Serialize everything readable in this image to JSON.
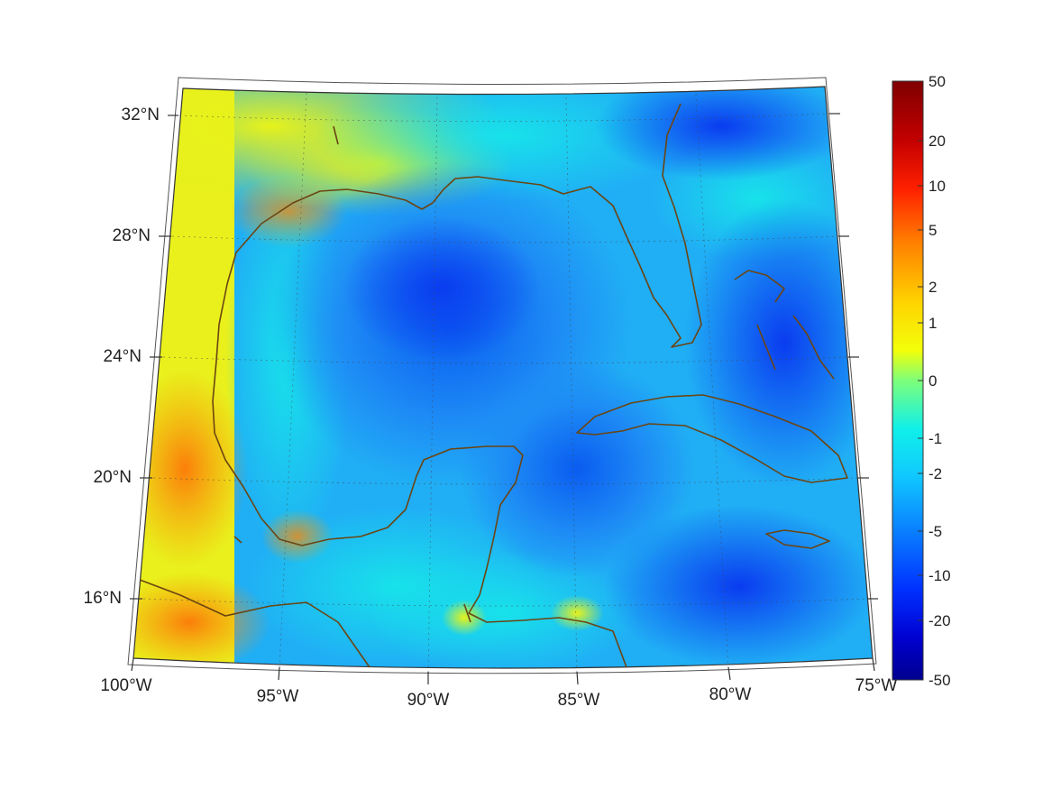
{
  "map": {
    "lat_labels": [
      "32°N",
      "28°N",
      "24°N",
      "20°N",
      "16°N"
    ],
    "lon_labels": [
      "100°W",
      "95°W",
      "90°W",
      "85°W",
      "80°W",
      "75°W"
    ],
    "extent": {
      "lon_min": -100,
      "lon_max": -75,
      "lat_min": 14,
      "lat_max": 32.6
    },
    "projection": "conic",
    "coastline_color": "#6b4513",
    "grid": "dotted",
    "colormap": "jet"
  },
  "colorbar": {
    "ticks": [
      "50",
      "20",
      "10",
      "5",
      "2",
      "1",
      "0",
      "-1",
      "-2",
      "-5",
      "-10",
      "-20",
      "-50"
    ],
    "range": [
      -50,
      50
    ],
    "placement": "right"
  }
}
